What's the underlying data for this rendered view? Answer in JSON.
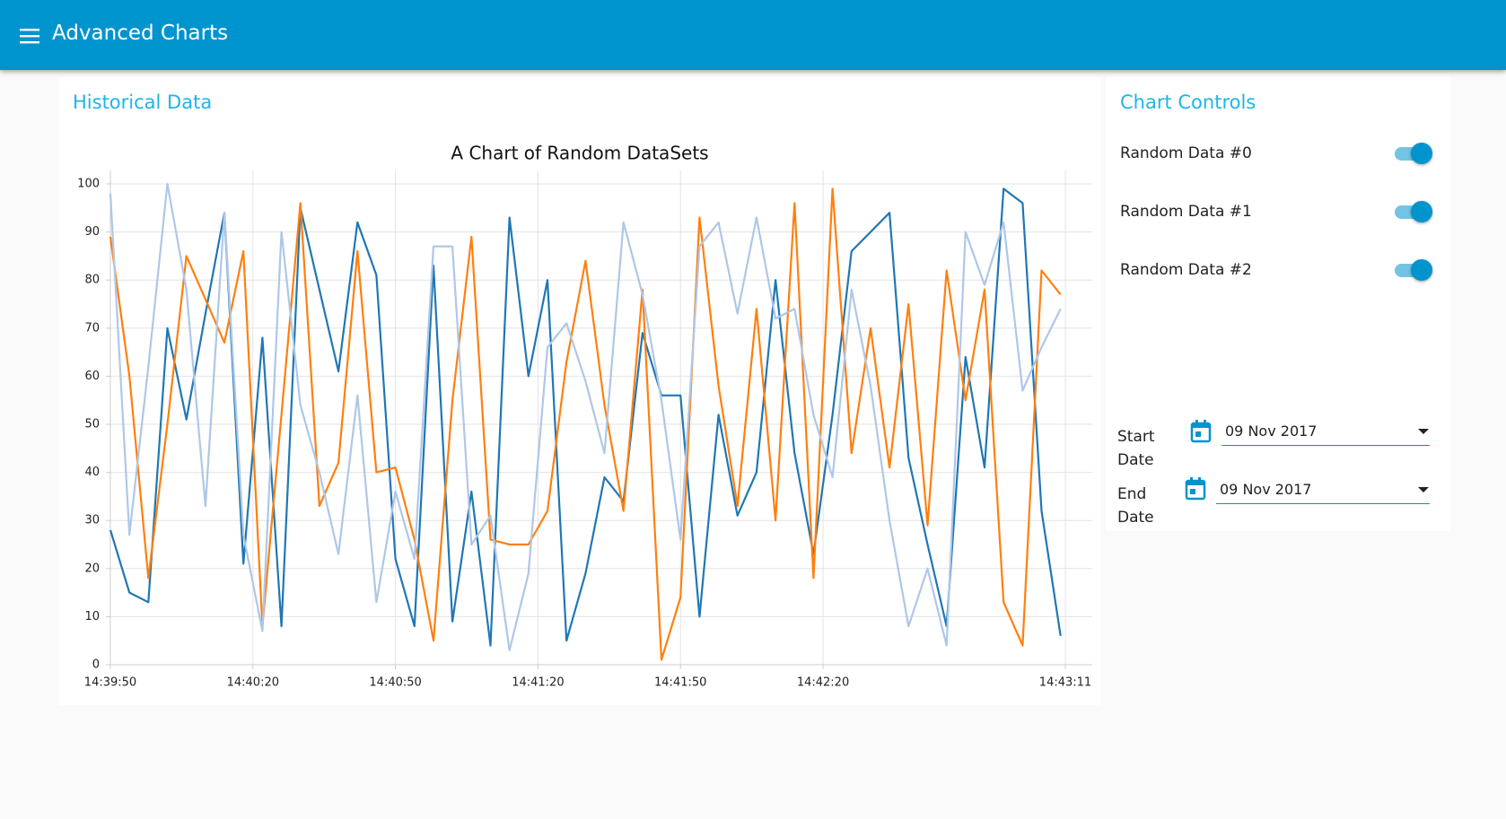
{
  "header": {
    "title": "Advanced Charts"
  },
  "history_card": {
    "title": "Historical Data"
  },
  "chart_data": {
    "type": "line",
    "title": "A Chart of Random DataSets",
    "x": [
      "14:39:50",
      "14:39:54",
      "14:39:58",
      "14:40:02",
      "14:40:06",
      "14:40:10",
      "14:40:14",
      "14:40:18",
      "14:40:22",
      "14:40:26",
      "14:40:30",
      "14:40:34",
      "14:40:38",
      "14:40:42",
      "14:40:46",
      "14:40:50",
      "14:40:54",
      "14:40:58",
      "14:41:02",
      "14:41:06",
      "14:41:10",
      "14:41:14",
      "14:41:18",
      "14:41:22",
      "14:41:26",
      "14:41:30",
      "14:41:34",
      "14:41:38",
      "14:41:42",
      "14:41:46",
      "14:41:50",
      "14:41:54",
      "14:41:58",
      "14:42:02",
      "14:42:06",
      "14:42:10",
      "14:42:14",
      "14:42:18",
      "14:42:22",
      "14:42:26",
      "14:42:30",
      "14:42:34",
      "14:42:38",
      "14:42:42",
      "14:42:46",
      "14:42:50",
      "14:42:54",
      "14:42:58",
      "14:43:02",
      "14:43:06",
      "14:43:10"
    ],
    "series": [
      {
        "name": "Random Data #0",
        "color": "#1f77b4",
        "values": [
          28,
          15,
          13,
          70,
          51,
          73,
          94,
          21,
          68,
          8,
          95,
          78,
          61,
          92,
          81,
          22,
          8,
          83,
          9,
          36,
          4,
          93,
          60,
          80,
          5,
          19,
          39,
          34,
          69,
          56,
          56,
          10,
          52,
          31,
          40,
          80,
          44,
          23,
          52,
          86,
          90,
          94,
          43,
          25,
          8,
          64,
          41,
          99,
          96,
          32,
          6
        ]
      },
      {
        "name": "Random Data #1",
        "color": "#ff7f0e",
        "values": [
          89,
          60,
          18,
          50,
          85,
          76,
          67,
          86,
          8,
          52,
          96,
          33,
          42,
          86,
          40,
          41,
          26,
          5,
          55,
          89,
          26,
          25,
          25,
          32,
          63,
          84,
          54,
          32,
          78,
          1,
          14,
          93,
          58,
          33,
          74,
          30,
          96,
          18,
          99,
          44,
          70,
          41,
          75,
          29,
          82,
          55,
          78,
          13,
          4,
          82,
          77
        ]
      },
      {
        "name": "Random Data #2",
        "color": "#aec7e8",
        "values": [
          98,
          27,
          62,
          100,
          78,
          33,
          94,
          27,
          7,
          90,
          54,
          40,
          23,
          56,
          13,
          36,
          22,
          87,
          87,
          25,
          31,
          3,
          19,
          66,
          71,
          59,
          44,
          92,
          77,
          55,
          26,
          87,
          92,
          73,
          93,
          72,
          74,
          52,
          39,
          78,
          58,
          30,
          8,
          20,
          4,
          90,
          79,
          92,
          57,
          66,
          74
        ]
      }
    ],
    "xlim": [
      "14:39:50",
      "14:43:11"
    ],
    "xticks": [
      "14:39:50",
      "14:40:20",
      "14:40:50",
      "14:41:20",
      "14:41:50",
      "14:42:20",
      "14:43:11"
    ],
    "ylim": [
      0,
      100
    ],
    "yticks": [
      0,
      10,
      20,
      30,
      40,
      50,
      60,
      70,
      80,
      90,
      100
    ],
    "grid": true
  },
  "controls": {
    "title": "Chart Controls",
    "start_label": "Start Date",
    "start_date": "09 Nov 2017",
    "end_label": "End Date",
    "end_date": "09 Nov 2017"
  }
}
